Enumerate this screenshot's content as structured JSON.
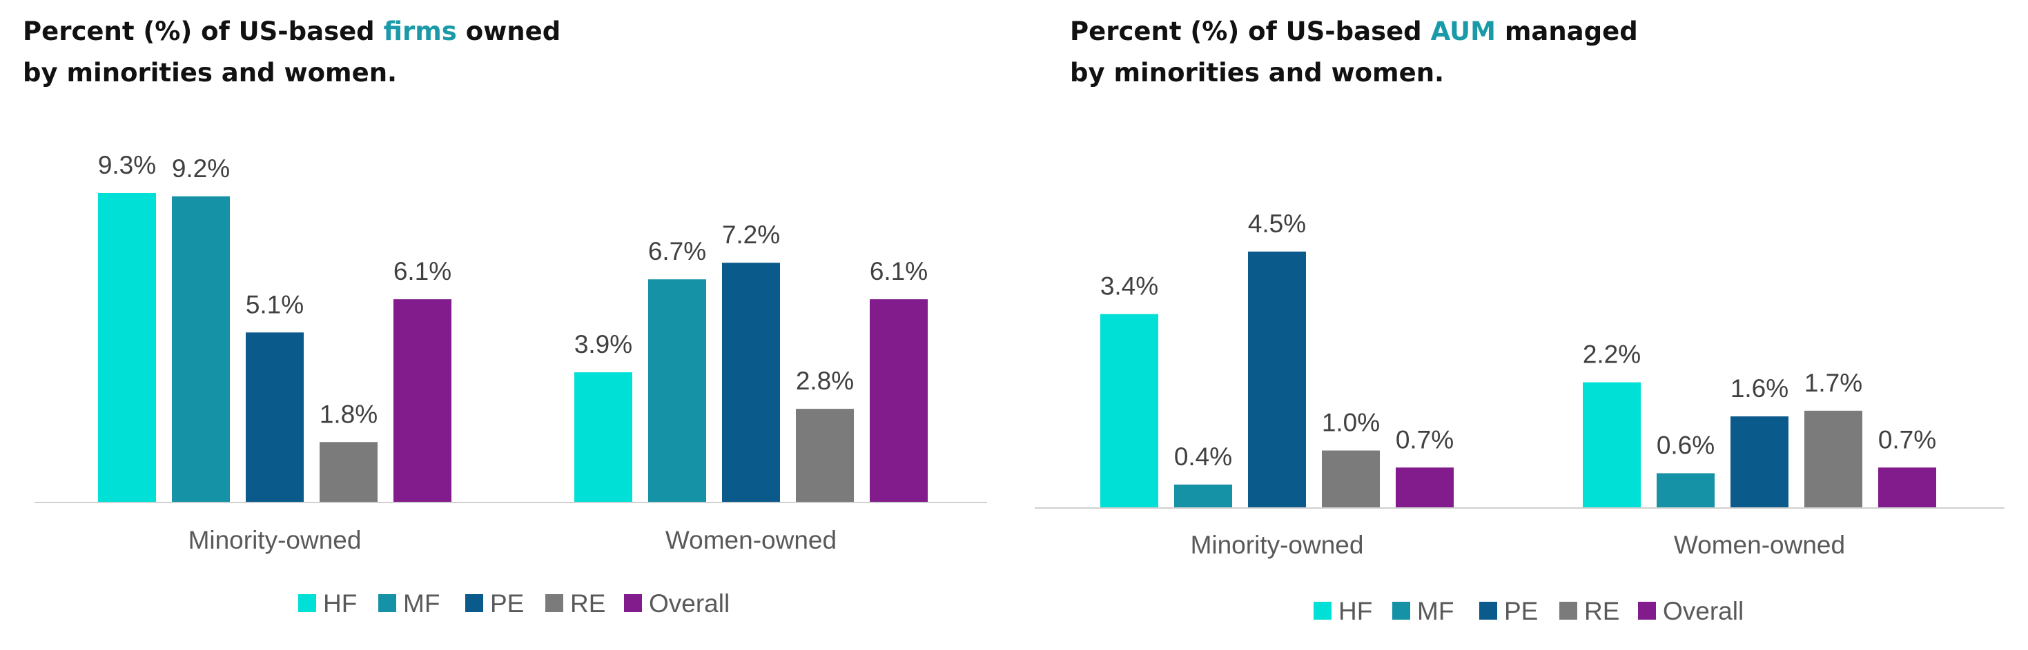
{
  "chart_data": [
    {
      "type": "bar",
      "title": {
        "line1_pre": "Percent (%) of US-based ",
        "line1_highlight": "firms",
        "line1_post": " owned",
        "line2": "by minorities and women."
      },
      "categories": [
        "Minority-owned",
        "Women-owned"
      ],
      "series": [
        {
          "name": "HF",
          "color": "#00e0d6",
          "values": [
            9.3,
            3.9
          ],
          "labels": [
            "9.3%",
            "3.9%"
          ]
        },
        {
          "name": "MF",
          "color": "#1592a6",
          "values": [
            9.2,
            6.7
          ],
          "labels": [
            "9.2%",
            "6.7%"
          ]
        },
        {
          "name": "PE",
          "color": "#0b5a8c",
          "values": [
            5.1,
            7.2
          ],
          "labels": [
            "5.1%",
            "7.2%"
          ]
        },
        {
          "name": "RE",
          "color": "#7b7b7b",
          "values": [
            1.8,
            2.8
          ],
          "labels": [
            "1.8%",
            "2.8%"
          ]
        },
        {
          "name": "Overall",
          "color": "#821c8c",
          "values": [
            6.1,
            6.1
          ],
          "labels": [
            "6.1%",
            "6.1%"
          ]
        }
      ],
      "ylim": [
        0,
        9.3
      ],
      "grid": false,
      "legend": "bottom"
    },
    {
      "type": "bar",
      "title": {
        "line1_pre": "Percent (%) of US-based ",
        "line1_highlight": "AUM",
        "line1_post": " managed",
        "line2": "by minorities and women."
      },
      "categories": [
        "Minority-owned",
        "Women-owned"
      ],
      "series": [
        {
          "name": "HF",
          "color": "#00e0d6",
          "values": [
            3.4,
            2.2
          ],
          "labels": [
            "3.4%",
            "2.2%"
          ]
        },
        {
          "name": "MF",
          "color": "#1592a6",
          "values": [
            0.4,
            0.6
          ],
          "labels": [
            "0.4%",
            "0.6%"
          ]
        },
        {
          "name": "PE",
          "color": "#0b5a8c",
          "values": [
            4.5,
            1.6
          ],
          "labels": [
            "4.5%",
            "1.6%"
          ]
        },
        {
          "name": "RE",
          "color": "#7b7b7b",
          "values": [
            1.0,
            1.7
          ],
          "labels": [
            "1.0%",
            "1.7%"
          ]
        },
        {
          "name": "Overall",
          "color": "#821c8c",
          "values": [
            0.7,
            0.7
          ],
          "labels": [
            "0.7%",
            "0.7%"
          ]
        }
      ],
      "ylim": [
        0,
        4.5
      ],
      "grid": false,
      "legend": "bottom"
    }
  ]
}
